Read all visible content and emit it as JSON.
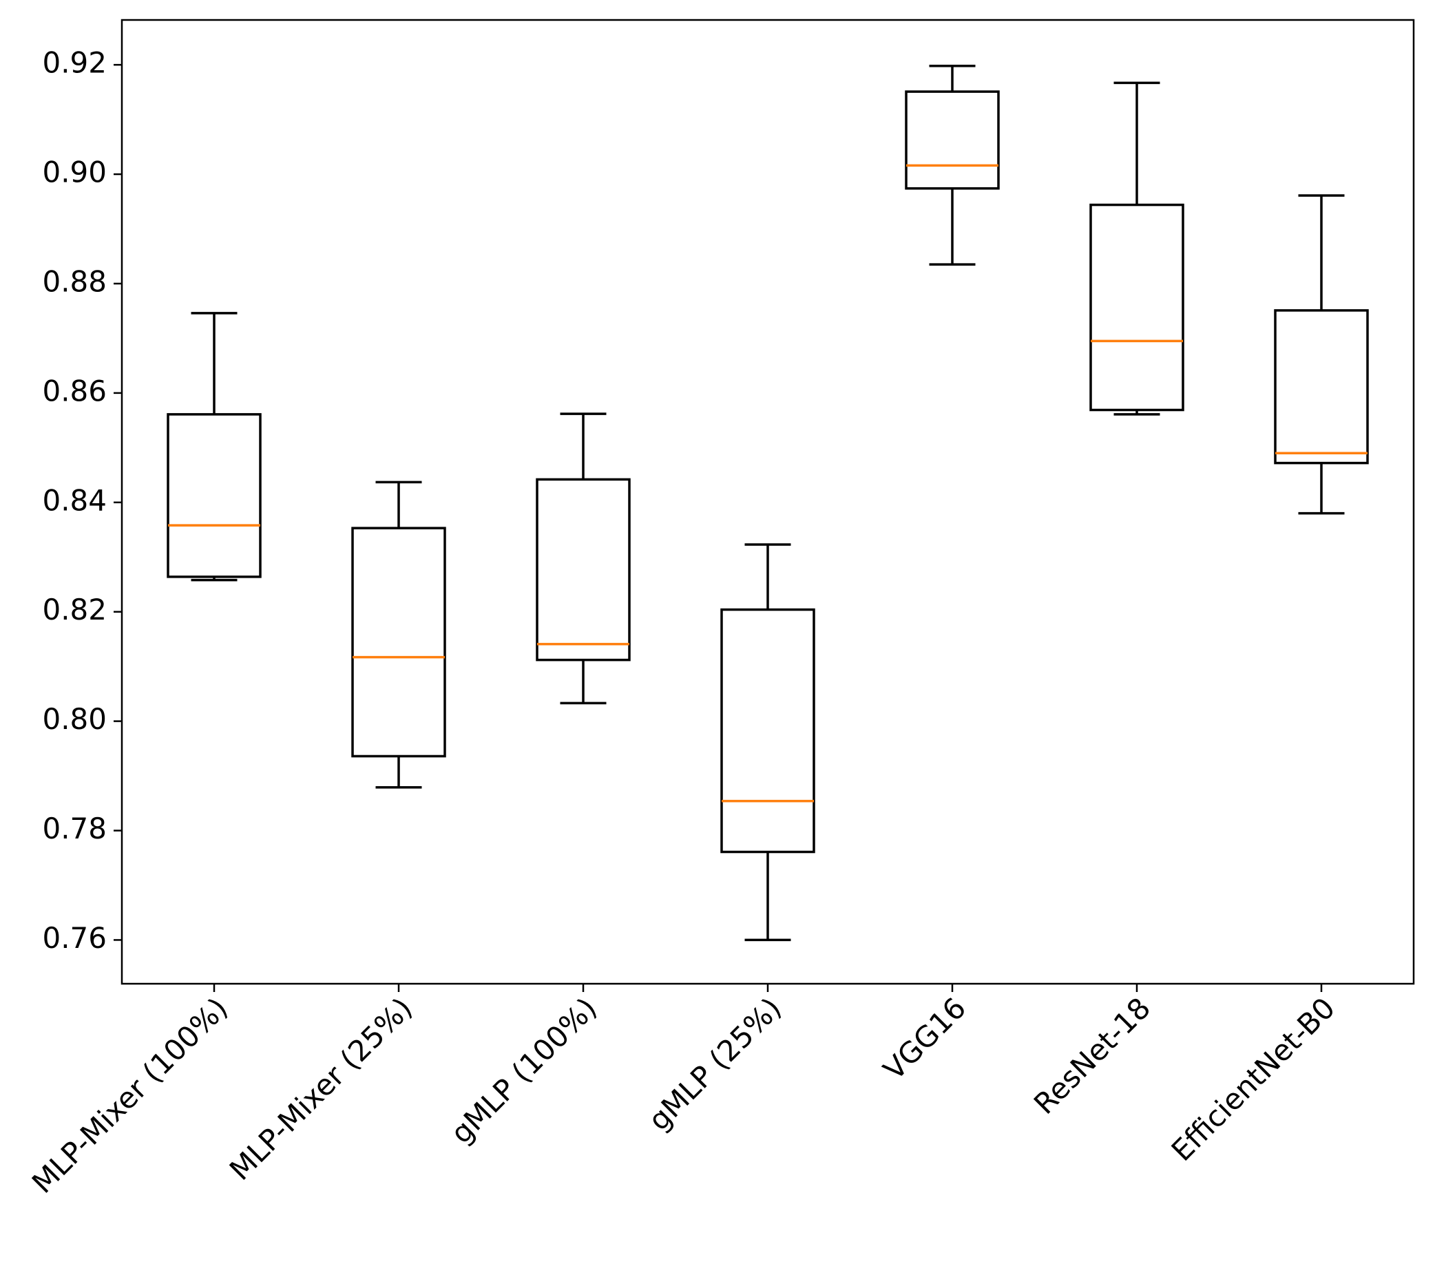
{
  "chart_data": {
    "type": "box",
    "categories": [
      "MLP-Mixer (100%)",
      "MLP-Mixer (25%)",
      "gMLP (100%)",
      "gMLP (25%)",
      "VGG16",
      "ResNet-18",
      "EfficientNet-B0"
    ],
    "low": [
      0.8258,
      0.7879,
      0.8033,
      0.76,
      0.8835,
      0.8561,
      0.838
    ],
    "q1": [
      0.8264,
      0.7936,
      0.8112,
      0.7761,
      0.8974,
      0.8569,
      0.8472
    ],
    "median": [
      0.8358,
      0.8117,
      0.8141,
      0.7854,
      0.9016,
      0.8695,
      0.849
    ],
    "q3": [
      0.8561,
      0.8353,
      0.8442,
      0.8204,
      0.9151,
      0.8944,
      0.8751
    ],
    "high": [
      0.8746,
      0.8437,
      0.8562,
      0.8323,
      0.9198,
      0.9167,
      0.8961
    ],
    "box_color": "#000000",
    "median_color": "#ff7f0e",
    "ylim": [
      0.752,
      0.9282
    ],
    "yticks": [
      0.76,
      0.78,
      {
        "value": 0.8,
        "label": "0.80"
      },
      0.82,
      0.84,
      0.86,
      0.88,
      {
        "value": 0.9,
        "label": "0.90"
      },
      0.92
    ]
  }
}
